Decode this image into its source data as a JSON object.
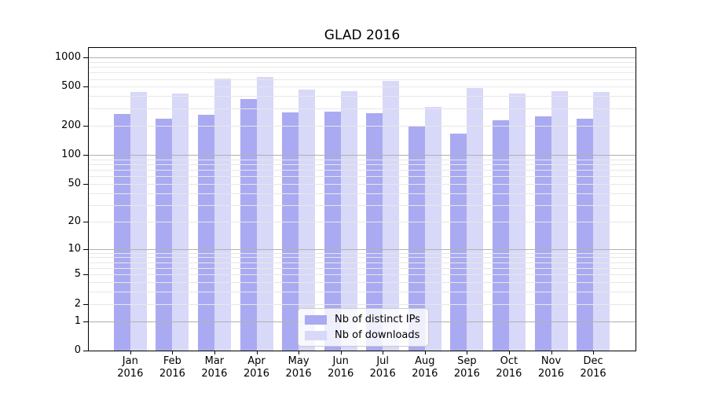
{
  "chart_data": {
    "type": "bar",
    "title": "GLAD 2016",
    "categories": [
      "Jan 2016",
      "Feb 2016",
      "Mar 2016",
      "Apr 2016",
      "May 2016",
      "Jun 2016",
      "Jul 2016",
      "Aug 2016",
      "Sep 2016",
      "Oct 2016",
      "Nov 2016",
      "Dec 2016"
    ],
    "series": [
      {
        "name": "Nb of distinct IPs",
        "color": "#aaaaf2",
        "values": [
          265,
          235,
          260,
          375,
          275,
          280,
          270,
          195,
          165,
          225,
          250,
          235
        ]
      },
      {
        "name": "Nb of downloads",
        "color": "#d8d8f8",
        "values": [
          440,
          425,
          610,
          635,
          465,
          450,
          570,
          310,
          485,
          430,
          450,
          440
        ]
      }
    ],
    "xlabel": "",
    "ylabel": "",
    "y_axis": {
      "scale": "log10(value+1)",
      "range": [
        0,
        1250
      ],
      "tick_values": [
        1000,
        500,
        200,
        100,
        50,
        20,
        10,
        5,
        2,
        1,
        0
      ],
      "major_gridlines": [
        1,
        10,
        100,
        1000
      ],
      "minor_gridlines": [
        2,
        3,
        4,
        5,
        6,
        7,
        8,
        9,
        20,
        30,
        40,
        50,
        60,
        70,
        80,
        90,
        200,
        300,
        400,
        500,
        600,
        700,
        800,
        900
      ]
    },
    "grid": "horizontal major and minor, drawn above bars",
    "legend": {
      "position": "lower center"
    }
  },
  "colors": {
    "background": "#ffffff",
    "spine": "#000000",
    "major_grid": "#b0b0b0",
    "minor_grid": "#e7e7e7",
    "series_ips": "#aaaaf2",
    "series_downloads": "#d8d8f8"
  }
}
